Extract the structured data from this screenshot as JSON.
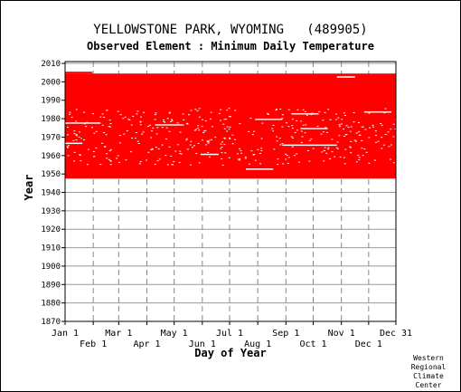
{
  "chart_data": {
    "type": "heatmap",
    "title": "YELLOWSTONE PARK, WYOMING   (489905)",
    "subtitle": "Observed Element : Minimum Daily Temperature",
    "xlabel": "Day of Year",
    "ylabel": "Year",
    "xlim": [
      1,
      365
    ],
    "ylim": [
      1870,
      2011
    ],
    "y_ticks": [
      1870,
      1880,
      1890,
      1900,
      1910,
      1920,
      1930,
      1940,
      1950,
      1960,
      1970,
      1980,
      1990,
      2000,
      2010
    ],
    "x_ticks_top": [
      "Jan 1",
      "Mar 1",
      "May 1",
      "Jul 1",
      "Sep 1",
      "Nov 1",
      "Dec 31"
    ],
    "x_ticks_bottom": [
      "Feb 1",
      "Apr 1",
      "Jun 1",
      "Aug 1",
      "Oct 1",
      "Dec 1"
    ],
    "x_tick_days_top": [
      1,
      60,
      121,
      182,
      244,
      305,
      365
    ],
    "x_tick_days_bottom": [
      32,
      91,
      152,
      213,
      274,
      335
    ],
    "data_color": "#ff0000",
    "observed_period": {
      "start_year": 1948,
      "end_year": 2004
    },
    "partial_year": {
      "year": 2005,
      "start_day": 1,
      "end_day": 31
    },
    "grid": true
  },
  "credit": [
    "Western",
    "Regional",
    "Climate",
    "Center"
  ]
}
